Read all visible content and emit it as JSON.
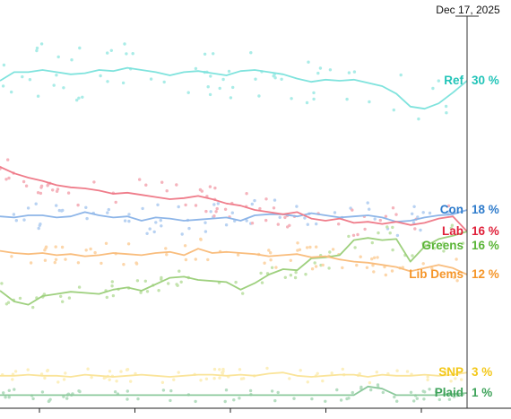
{
  "chart_data": {
    "type": "line",
    "annotation": "Dec 17, 2025",
    "x_axis_tick_count": 5,
    "ylim": [
      0,
      35
    ],
    "n_points": 34,
    "series": [
      {
        "name": "Ref",
        "value_label": "30 %",
        "label_color": "#22c4b8",
        "color": "#7fe3dd",
        "dot_color": "#a9ece7",
        "values": [
          30.0,
          30.8,
          30.8,
          31.0,
          30.8,
          30.6,
          30.7,
          31.0,
          30.9,
          31.2,
          31.0,
          30.8,
          30.5,
          30.8,
          30.9,
          30.7,
          30.5,
          30.9,
          31.0,
          30.8,
          30.6,
          30.2,
          29.9,
          30.1,
          30.0,
          30.1,
          29.8,
          29.5,
          28.8,
          27.6,
          27.4,
          27.9,
          28.9,
          30.0
        ]
      },
      {
        "name": "Con",
        "value_label": "18 %",
        "label_color": "#2f7ccc",
        "color": "#8db5e8",
        "dot_color": "#b8d2f2",
        "values": [
          17.4,
          17.3,
          17.5,
          17.5,
          17.3,
          17.4,
          17.8,
          17.5,
          17.3,
          17.4,
          17.0,
          17.3,
          17.2,
          17.0,
          17.1,
          17.2,
          17.3,
          17.0,
          17.5,
          17.6,
          17.6,
          17.4,
          17.7,
          17.5,
          17.3,
          17.4,
          17.5,
          17.3,
          16.9,
          17.0,
          17.3,
          17.5,
          17.6,
          18.0
        ]
      },
      {
        "name": "Lab",
        "value_label": "16 %",
        "label_color": "#e0213a",
        "color": "#ef7c8a",
        "dot_color": "#f5b3bc",
        "values": [
          22.0,
          21.4,
          21.0,
          20.7,
          20.3,
          20.1,
          20.0,
          19.8,
          19.5,
          19.6,
          19.4,
          19.2,
          19.0,
          19.1,
          19.3,
          19.0,
          18.6,
          18.4,
          18.0,
          17.8,
          17.6,
          17.8,
          17.2,
          17.0,
          17.2,
          16.8,
          16.9,
          16.7,
          16.9,
          16.6,
          16.8,
          17.2,
          17.4,
          16.0
        ]
      },
      {
        "name": "Greens",
        "value_label": "16 %",
        "label_color": "#5ab537",
        "color": "#9ed07e",
        "dot_color": "#c3e3ad",
        "values": [
          10.5,
          9.5,
          9.2,
          10.0,
          10.2,
          10.4,
          10.3,
          10.2,
          10.6,
          10.8,
          10.5,
          11.1,
          11.7,
          11.8,
          11.5,
          11.4,
          11.3,
          10.6,
          11.2,
          12.0,
          12.5,
          12.4,
          13.5,
          13.6,
          13.8,
          15.2,
          15.4,
          15.2,
          15.3,
          13.2,
          14.6,
          15.3,
          15.6,
          16.0
        ]
      },
      {
        "name": "Lib Dems",
        "value_label": "12 %",
        "label_color": "#f5962a",
        "color": "#f9bd7d",
        "dot_color": "#fcd6aa",
        "values": [
          14.2,
          14.0,
          13.9,
          14.0,
          13.8,
          13.9,
          13.7,
          13.8,
          14.0,
          13.9,
          13.8,
          14.0,
          14.1,
          13.8,
          14.4,
          14.0,
          14.1,
          14.0,
          13.9,
          13.7,
          13.8,
          13.9,
          13.6,
          13.7,
          13.4,
          13.2,
          13.1,
          12.9,
          12.7,
          12.3,
          12.6,
          12.9,
          12.6,
          12.0
        ]
      },
      {
        "name": "SNP",
        "value_label": "3 %",
        "label_color": "#f3c81a",
        "color": "#fae49a",
        "dot_color": "#fcefbd",
        "values": [
          2.6,
          2.6,
          2.7,
          2.6,
          2.6,
          2.5,
          2.7,
          2.6,
          2.5,
          2.6,
          2.7,
          2.6,
          2.5,
          2.6,
          2.7,
          2.7,
          2.6,
          2.7,
          2.6,
          2.8,
          2.9,
          2.6,
          2.5,
          2.6,
          2.7,
          2.7,
          2.5,
          2.7,
          2.6,
          2.6,
          2.7,
          2.6,
          2.7,
          2.9
        ]
      },
      {
        "name": "Plaid",
        "value_label": "1 %",
        "label_color": "#3ea35a",
        "color": "#8cc99c",
        "dot_color": "#b5ddc0",
        "values": [
          0.8,
          0.8,
          0.8,
          0.8,
          0.8,
          0.8,
          0.8,
          0.8,
          0.8,
          0.8,
          0.8,
          0.8,
          0.8,
          0.8,
          0.8,
          0.8,
          0.8,
          0.8,
          0.8,
          0.8,
          0.8,
          0.8,
          0.8,
          0.8,
          0.8,
          0.8,
          1.6,
          1.4,
          0.8,
          0.8,
          0.8,
          0.8,
          0.9,
          1.0
        ]
      }
    ]
  }
}
